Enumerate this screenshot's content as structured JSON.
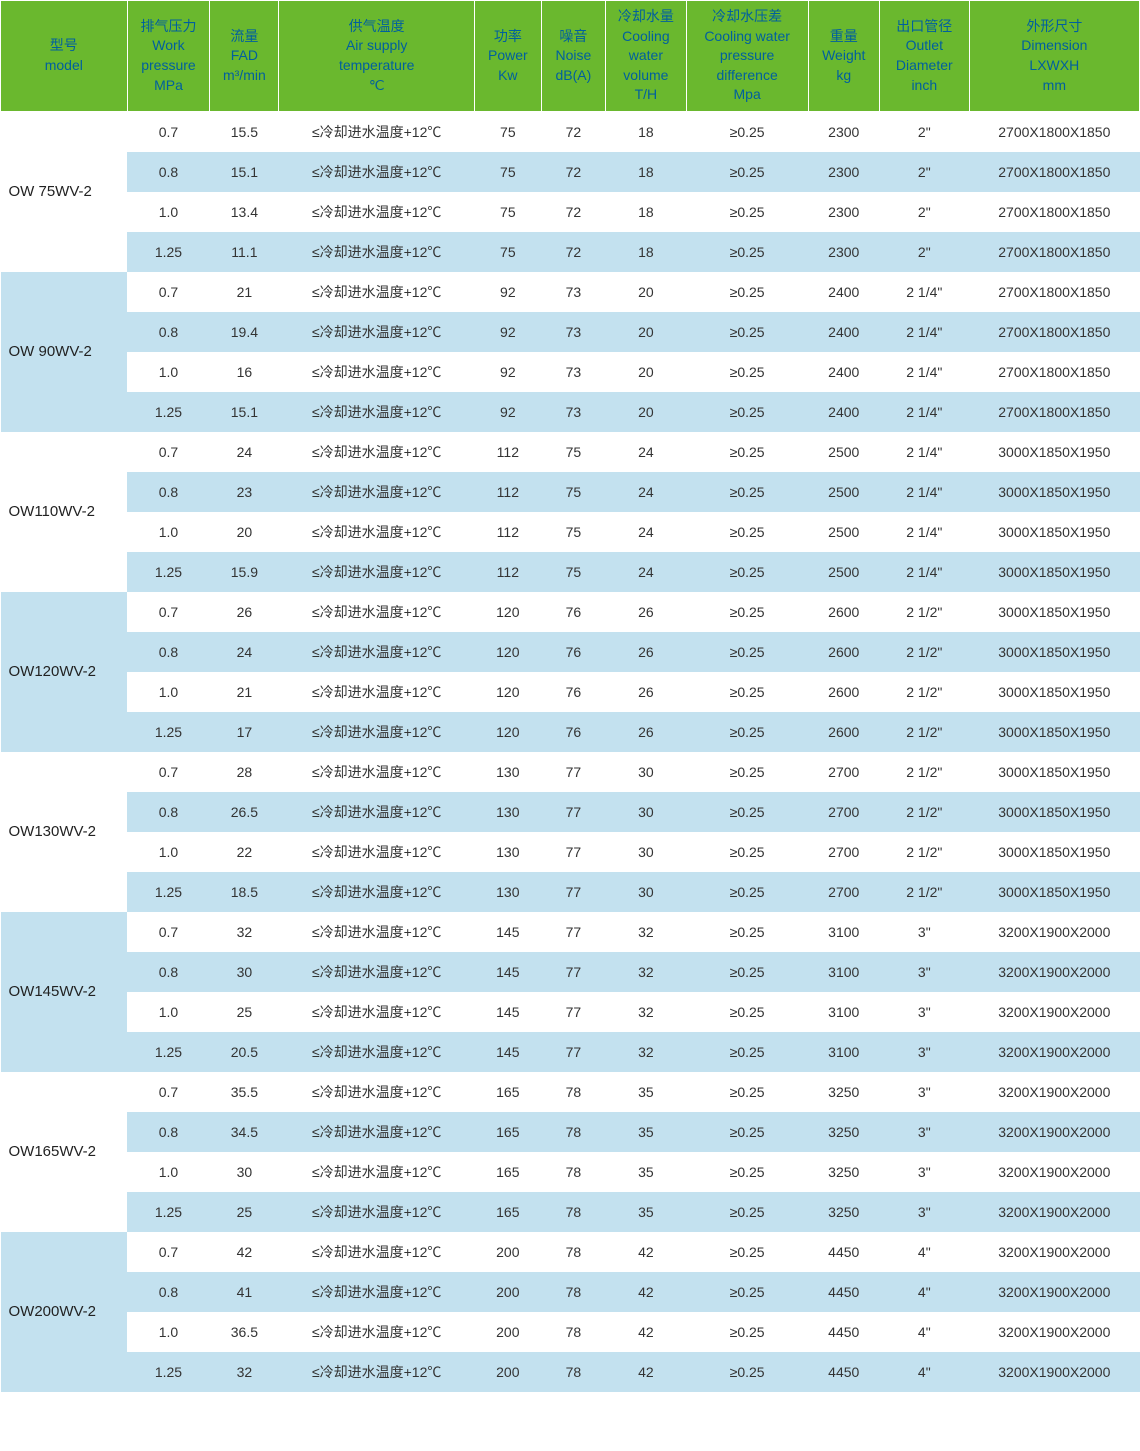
{
  "colors": {
    "header_bg": "#6ab82e",
    "header_text": "#005f9e",
    "row_odd_bg": "#ffffff",
    "row_even_bg": "#c3e1ef",
    "cell_text": "#333333"
  },
  "columns": [
    {
      "key": "model",
      "lines": [
        "型号",
        "model",
        "",
        ""
      ]
    },
    {
      "key": "pressure",
      "lines": [
        "排气压力",
        "Work",
        "pressure",
        "MPa"
      ]
    },
    {
      "key": "fad",
      "lines": [
        "流量",
        "FAD",
        "",
        "m³/min"
      ]
    },
    {
      "key": "temp",
      "lines": [
        "供气温度",
        "Air supply",
        "temperature",
        "℃"
      ]
    },
    {
      "key": "power",
      "lines": [
        "功率",
        "Power",
        "",
        "Kw"
      ]
    },
    {
      "key": "noise",
      "lines": [
        "噪音",
        "Noise",
        "",
        "dB(A)"
      ]
    },
    {
      "key": "cooling",
      "lines": [
        "冷却水量",
        "Cooling",
        "water",
        "volume",
        "T/H"
      ]
    },
    {
      "key": "diff",
      "lines": [
        "冷却水压差",
        "Cooling water",
        "pressure",
        "difference",
        "Mpa"
      ]
    },
    {
      "key": "weight",
      "lines": [
        "重量",
        "Weight",
        "",
        "kg"
      ]
    },
    {
      "key": "outlet",
      "lines": [
        "出口管径",
        "Outlet",
        "Diameter",
        "inch"
      ]
    },
    {
      "key": "dim",
      "lines": [
        "外形尺寸",
        "Dimension",
        "LXWXH",
        "mm"
      ]
    }
  ],
  "groups": [
    {
      "model": "OW 75WV-2",
      "rows": [
        {
          "pressure": "0.7",
          "fad": "15.5",
          "temp": "≤冷却进水温度+12℃",
          "power": "75",
          "noise": "72",
          "cooling": "18",
          "diff": "≥0.25",
          "weight": "2300",
          "outlet": "2\"",
          "dim": "2700X1800X1850"
        },
        {
          "pressure": "0.8",
          "fad": "15.1",
          "temp": "≤冷却进水温度+12℃",
          "power": "75",
          "noise": "72",
          "cooling": "18",
          "diff": "≥0.25",
          "weight": "2300",
          "outlet": "2\"",
          "dim": "2700X1800X1850"
        },
        {
          "pressure": "1.0",
          "fad": "13.4",
          "temp": "≤冷却进水温度+12℃",
          "power": "75",
          "noise": "72",
          "cooling": "18",
          "diff": "≥0.25",
          "weight": "2300",
          "outlet": "2\"",
          "dim": "2700X1800X1850"
        },
        {
          "pressure": "1.25",
          "fad": "11.1",
          "temp": "≤冷却进水温度+12℃",
          "power": "75",
          "noise": "72",
          "cooling": "18",
          "diff": "≥0.25",
          "weight": "2300",
          "outlet": "2\"",
          "dim": "2700X1800X1850"
        }
      ]
    },
    {
      "model": "OW 90WV-2",
      "rows": [
        {
          "pressure": "0.7",
          "fad": "21",
          "temp": "≤冷却进水温度+12℃",
          "power": "92",
          "noise": "73",
          "cooling": "20",
          "diff": "≥0.25",
          "weight": "2400",
          "outlet": "2 1/4\"",
          "dim": "2700X1800X1850"
        },
        {
          "pressure": "0.8",
          "fad": "19.4",
          "temp": "≤冷却进水温度+12℃",
          "power": "92",
          "noise": "73",
          "cooling": "20",
          "diff": "≥0.25",
          "weight": "2400",
          "outlet": "2 1/4\"",
          "dim": "2700X1800X1850"
        },
        {
          "pressure": "1.0",
          "fad": "16",
          "temp": "≤冷却进水温度+12℃",
          "power": "92",
          "noise": "73",
          "cooling": "20",
          "diff": "≥0.25",
          "weight": "2400",
          "outlet": "2 1/4\"",
          "dim": "2700X1800X1850"
        },
        {
          "pressure": "1.25",
          "fad": "15.1",
          "temp": "≤冷却进水温度+12℃",
          "power": "92",
          "noise": "73",
          "cooling": "20",
          "diff": "≥0.25",
          "weight": "2400",
          "outlet": "2 1/4\"",
          "dim": "2700X1800X1850"
        }
      ]
    },
    {
      "model": "OW110WV-2",
      "rows": [
        {
          "pressure": "0.7",
          "fad": "24",
          "temp": "≤冷却进水温度+12℃",
          "power": "112",
          "noise": "75",
          "cooling": "24",
          "diff": "≥0.25",
          "weight": "2500",
          "outlet": "2 1/4\"",
          "dim": "3000X1850X1950"
        },
        {
          "pressure": "0.8",
          "fad": "23",
          "temp": "≤冷却进水温度+12℃",
          "power": "112",
          "noise": "75",
          "cooling": "24",
          "diff": "≥0.25",
          "weight": "2500",
          "outlet": "2 1/4\"",
          "dim": "3000X1850X1950"
        },
        {
          "pressure": "1.0",
          "fad": "20",
          "temp": "≤冷却进水温度+12℃",
          "power": "112",
          "noise": "75",
          "cooling": "24",
          "diff": "≥0.25",
          "weight": "2500",
          "outlet": "2 1/4\"",
          "dim": "3000X1850X1950"
        },
        {
          "pressure": "1.25",
          "fad": "15.9",
          "temp": "≤冷却进水温度+12℃",
          "power": "112",
          "noise": "75",
          "cooling": "24",
          "diff": "≥0.25",
          "weight": "2500",
          "outlet": "2 1/4\"",
          "dim": "3000X1850X1950"
        }
      ]
    },
    {
      "model": "OW120WV-2",
      "rows": [
        {
          "pressure": "0.7",
          "fad": "26",
          "temp": "≤冷却进水温度+12℃",
          "power": "120",
          "noise": "76",
          "cooling": "26",
          "diff": "≥0.25",
          "weight": "2600",
          "outlet": "2 1/2\"",
          "dim": "3000X1850X1950"
        },
        {
          "pressure": "0.8",
          "fad": "24",
          "temp": "≤冷却进水温度+12℃",
          "power": "120",
          "noise": "76",
          "cooling": "26",
          "diff": "≥0.25",
          "weight": "2600",
          "outlet": "2 1/2\"",
          "dim": "3000X1850X1950"
        },
        {
          "pressure": "1.0",
          "fad": "21",
          "temp": "≤冷却进水温度+12℃",
          "power": "120",
          "noise": "76",
          "cooling": "26",
          "diff": "≥0.25",
          "weight": "2600",
          "outlet": "2 1/2\"",
          "dim": "3000X1850X1950"
        },
        {
          "pressure": "1.25",
          "fad": "17",
          "temp": "≤冷却进水温度+12℃",
          "power": "120",
          "noise": "76",
          "cooling": "26",
          "diff": "≥0.25",
          "weight": "2600",
          "outlet": "2 1/2\"",
          "dim": "3000X1850X1950"
        }
      ]
    },
    {
      "model": "OW130WV-2",
      "rows": [
        {
          "pressure": "0.7",
          "fad": "28",
          "temp": "≤冷却进水温度+12℃",
          "power": "130",
          "noise": "77",
          "cooling": "30",
          "diff": "≥0.25",
          "weight": "2700",
          "outlet": "2 1/2\"",
          "dim": "3000X1850X1950"
        },
        {
          "pressure": "0.8",
          "fad": "26.5",
          "temp": "≤冷却进水温度+12℃",
          "power": "130",
          "noise": "77",
          "cooling": "30",
          "diff": "≥0.25",
          "weight": "2700",
          "outlet": "2 1/2\"",
          "dim": "3000X1850X1950"
        },
        {
          "pressure": "1.0",
          "fad": "22",
          "temp": "≤冷却进水温度+12℃",
          "power": "130",
          "noise": "77",
          "cooling": "30",
          "diff": "≥0.25",
          "weight": "2700",
          "outlet": "2 1/2\"",
          "dim": "3000X1850X1950"
        },
        {
          "pressure": "1.25",
          "fad": "18.5",
          "temp": "≤冷却进水温度+12℃",
          "power": "130",
          "noise": "77",
          "cooling": "30",
          "diff": "≥0.25",
          "weight": "2700",
          "outlet": "2 1/2\"",
          "dim": "3000X1850X1950"
        }
      ]
    },
    {
      "model": "OW145WV-2",
      "rows": [
        {
          "pressure": "0.7",
          "fad": "32",
          "temp": "≤冷却进水温度+12℃",
          "power": "145",
          "noise": "77",
          "cooling": "32",
          "diff": "≥0.25",
          "weight": "3100",
          "outlet": "3\"",
          "dim": "3200X1900X2000"
        },
        {
          "pressure": "0.8",
          "fad": "30",
          "temp": "≤冷却进水温度+12℃",
          "power": "145",
          "noise": "77",
          "cooling": "32",
          "diff": "≥0.25",
          "weight": "3100",
          "outlet": "3\"",
          "dim": "3200X1900X2000"
        },
        {
          "pressure": "1.0",
          "fad": "25",
          "temp": "≤冷却进水温度+12℃",
          "power": "145",
          "noise": "77",
          "cooling": "32",
          "diff": "≥0.25",
          "weight": "3100",
          "outlet": "3\"",
          "dim": "3200X1900X2000"
        },
        {
          "pressure": "1.25",
          "fad": "20.5",
          "temp": "≤冷却进水温度+12℃",
          "power": "145",
          "noise": "77",
          "cooling": "32",
          "diff": "≥0.25",
          "weight": "3100",
          "outlet": "3\"",
          "dim": "3200X1900X2000"
        }
      ]
    },
    {
      "model": "OW165WV-2",
      "rows": [
        {
          "pressure": "0.7",
          "fad": "35.5",
          "temp": "≤冷却进水温度+12℃",
          "power": "165",
          "noise": "78",
          "cooling": "35",
          "diff": "≥0.25",
          "weight": "3250",
          "outlet": "3\"",
          "dim": "3200X1900X2000"
        },
        {
          "pressure": "0.8",
          "fad": "34.5",
          "temp": "≤冷却进水温度+12℃",
          "power": "165",
          "noise": "78",
          "cooling": "35",
          "diff": "≥0.25",
          "weight": "3250",
          "outlet": "3\"",
          "dim": "3200X1900X2000"
        },
        {
          "pressure": "1.0",
          "fad": "30",
          "temp": "≤冷却进水温度+12℃",
          "power": "165",
          "noise": "78",
          "cooling": "35",
          "diff": "≥0.25",
          "weight": "3250",
          "outlet": "3\"",
          "dim": "3200X1900X2000"
        },
        {
          "pressure": "1.25",
          "fad": "25",
          "temp": "≤冷却进水温度+12℃",
          "power": "165",
          "noise": "78",
          "cooling": "35",
          "diff": "≥0.25",
          "weight": "3250",
          "outlet": "3\"",
          "dim": "3200X1900X2000"
        }
      ]
    },
    {
      "model": "OW200WV-2",
      "rows": [
        {
          "pressure": "0.7",
          "fad": "42",
          "temp": "≤冷却进水温度+12℃",
          "power": "200",
          "noise": "78",
          "cooling": "42",
          "diff": "≥0.25",
          "weight": "4450",
          "outlet": "4\"",
          "dim": "3200X1900X2000"
        },
        {
          "pressure": "0.8",
          "fad": "41",
          "temp": "≤冷却进水温度+12℃",
          "power": "200",
          "noise": "78",
          "cooling": "42",
          "diff": "≥0.25",
          "weight": "4450",
          "outlet": "4\"",
          "dim": "3200X1900X2000"
        },
        {
          "pressure": "1.0",
          "fad": "36.5",
          "temp": "≤冷却进水温度+12℃",
          "power": "200",
          "noise": "78",
          "cooling": "42",
          "diff": "≥0.25",
          "weight": "4450",
          "outlet": "4\"",
          "dim": "3200X1900X2000"
        },
        {
          "pressure": "1.25",
          "fad": "32",
          "temp": "≤冷却进水温度+12℃",
          "power": "200",
          "noise": "78",
          "cooling": "42",
          "diff": "≥0.25",
          "weight": "4450",
          "outlet": "4\"",
          "dim": "3200X1900X2000"
        }
      ]
    }
  ]
}
